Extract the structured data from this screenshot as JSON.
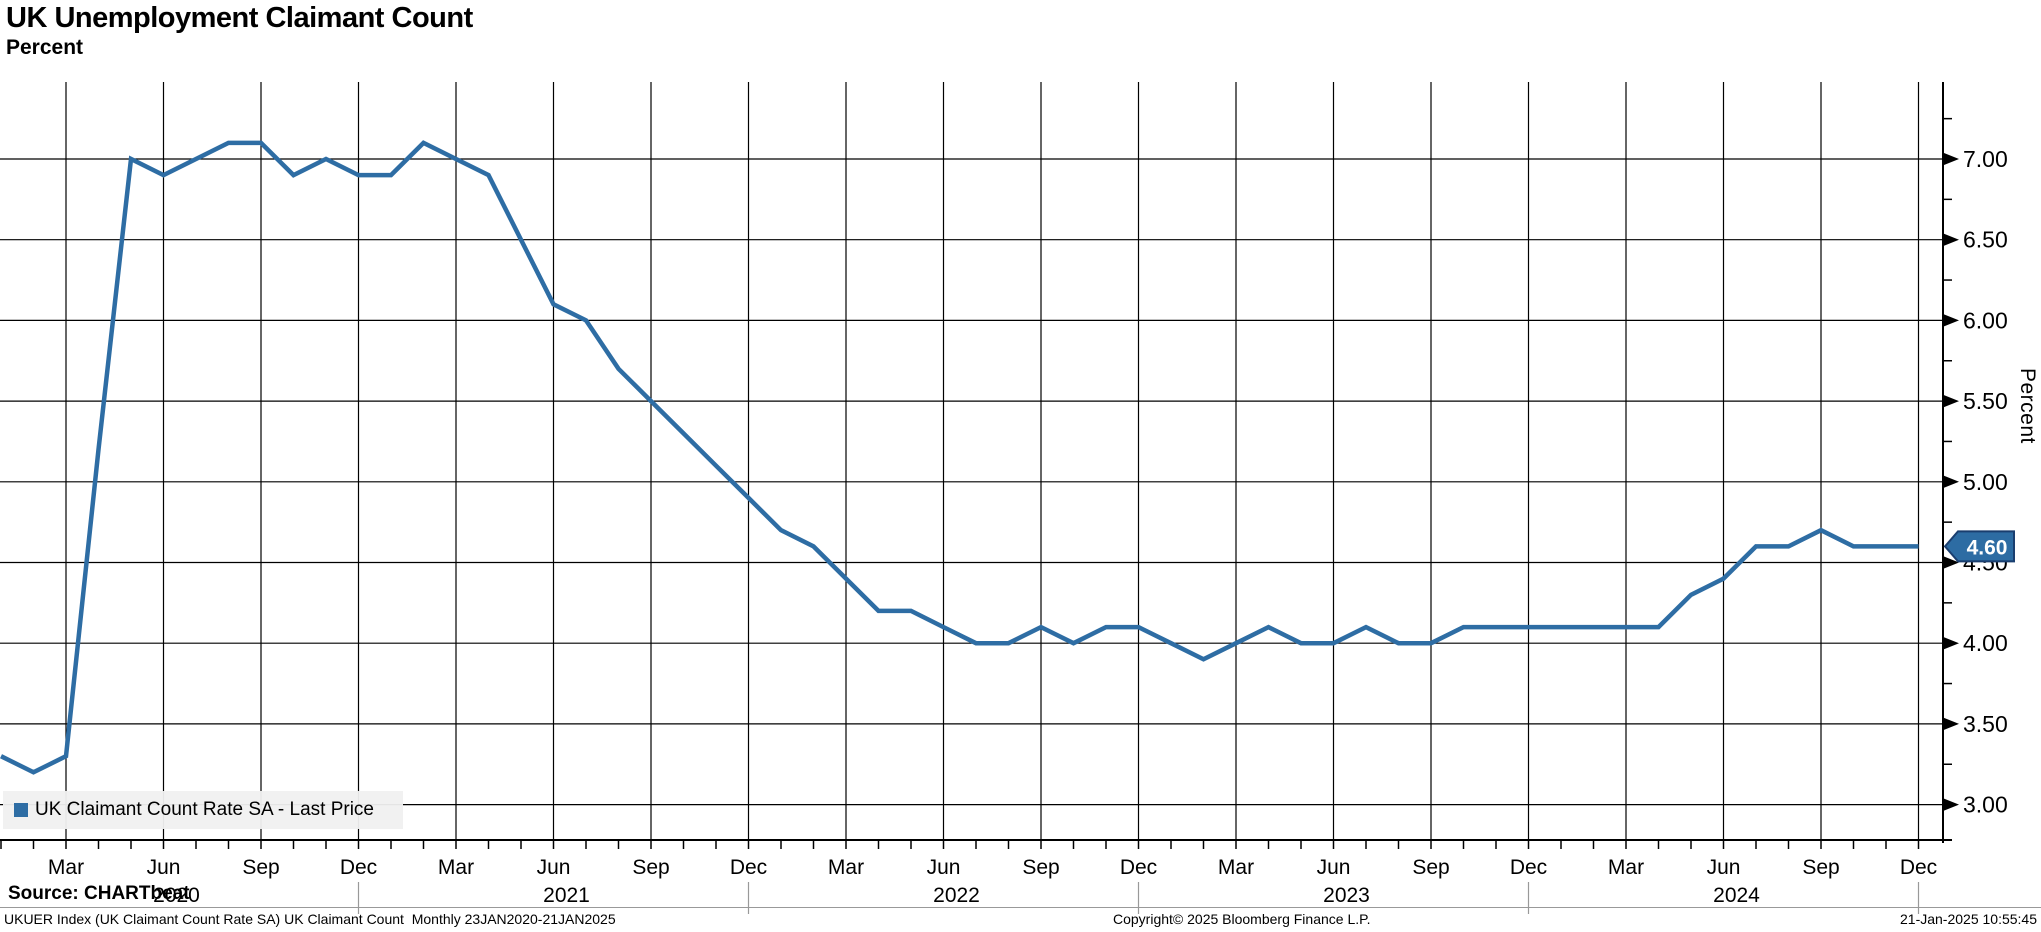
{
  "header": {
    "title": "UK Unemployment Claimant Count",
    "subtitle": "Percent"
  },
  "legend": {
    "marker_color": "#2e6da4",
    "label": "UK Claimant Count Rate SA - Last Price"
  },
  "y_axis_title": "Percent",
  "footer": {
    "source": "Source: CHARTbeat",
    "meta": "UKUER Index (UK Claimant Count Rate SA) UK Claimant Count  Monthly 23JAN2020-21JAN2025",
    "copyright": "Copyright© 2025 Bloomberg Finance L.P.",
    "timestamp": "21-Jan-2025 10:55:45"
  },
  "chart_data": {
    "type": "line",
    "title": "UK Unemployment Claimant Count",
    "ylabel": "Percent",
    "x_start": "Jan 2020",
    "x_end": "Dec 2024",
    "frequency": "monthly",
    "grid": true,
    "legend_position": "bottom-left",
    "ylim": [
      2.78,
      7.48
    ],
    "y_ticks": [
      {
        "label": "7.00",
        "value": 7.0
      },
      {
        "label": "6.50",
        "value": 6.5
      },
      {
        "label": "6.00",
        "value": 6.0
      },
      {
        "label": "5.50",
        "value": 5.5
      },
      {
        "label": "5.00",
        "value": 5.0
      },
      {
        "label": "4.50",
        "value": 4.5
      },
      {
        "label": "4.00",
        "value": 4.0
      },
      {
        "label": "3.50",
        "value": 3.5
      },
      {
        "label": "3.00",
        "value": 3.0
      }
    ],
    "y_minor_tick_values": [
      3.25,
      3.75,
      4.25,
      4.75,
      5.25,
      5.75,
      6.25,
      6.75,
      7.25
    ],
    "x_quarter_ticks": [
      {
        "label": "Mar",
        "month_index": 2
      },
      {
        "label": "Jun",
        "month_index": 5
      },
      {
        "label": "Sep",
        "month_index": 8
      },
      {
        "label": "Dec",
        "month_index": 11
      },
      {
        "label": "Mar",
        "month_index": 14
      },
      {
        "label": "Jun",
        "month_index": 17
      },
      {
        "label": "Sep",
        "month_index": 20
      },
      {
        "label": "Dec",
        "month_index": 23
      },
      {
        "label": "Mar",
        "month_index": 26
      },
      {
        "label": "Jun",
        "month_index": 29
      },
      {
        "label": "Sep",
        "month_index": 32
      },
      {
        "label": "Dec",
        "month_index": 35
      },
      {
        "label": "Mar",
        "month_index": 38
      },
      {
        "label": "Jun",
        "month_index": 41
      },
      {
        "label": "Sep",
        "month_index": 44
      },
      {
        "label": "Dec",
        "month_index": 47
      },
      {
        "label": "Mar",
        "month_index": 50
      },
      {
        "label": "Jun",
        "month_index": 53
      },
      {
        "label": "Sep",
        "month_index": 56
      },
      {
        "label": "Dec",
        "month_index": 59
      }
    ],
    "x_year_labels": [
      {
        "label": "2020",
        "month_index": 5
      },
      {
        "label": "2021",
        "month_index": 17
      },
      {
        "label": "2022",
        "month_index": 29
      },
      {
        "label": "2023",
        "month_index": 41
      },
      {
        "label": "2024",
        "month_index": 53
      }
    ],
    "year_separator_month_indices": [
      11,
      23,
      35,
      47,
      59
    ],
    "series": [
      {
        "name": "UK Claimant Count Rate SA - Last Price",
        "color": "#2e6da4",
        "monthly_values": [
          3.3,
          3.2,
          3.3,
          5.2,
          7.0,
          6.9,
          7.0,
          7.1,
          7.1,
          6.9,
          7.0,
          6.9,
          6.9,
          7.1,
          7.0,
          6.9,
          6.5,
          6.1,
          6.0,
          5.7,
          5.5,
          5.3,
          5.1,
          4.9,
          4.7,
          4.6,
          4.4,
          4.2,
          4.2,
          4.1,
          4.0,
          4.0,
          4.1,
          4.0,
          4.1,
          4.1,
          4.0,
          3.9,
          4.0,
          4.1,
          4.0,
          4.0,
          4.1,
          4.0,
          4.0,
          4.1,
          4.1,
          4.1,
          4.1,
          4.1,
          4.1,
          4.1,
          4.3,
          4.4,
          4.6,
          4.6,
          4.7,
          4.6,
          4.6,
          4.6
        ]
      }
    ],
    "last_price": {
      "label": "4.60",
      "value": 4.6,
      "tag_fill": "#2d6ca3",
      "tag_border": "#1a3e6f"
    }
  }
}
